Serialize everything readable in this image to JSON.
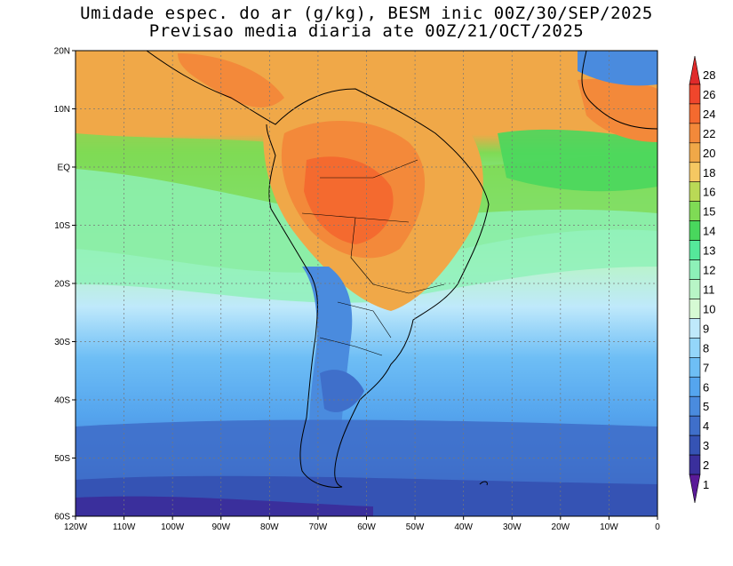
{
  "title": {
    "line1": "Umidade espec. do ar (g/kg), BESM inic 00Z/30/SEP/2025",
    "line2": "Previsao media diaria ate 00Z/21/OCT/2025"
  },
  "map": {
    "lat_labels": [
      "20N",
      "10N",
      "EQ",
      "10S",
      "20S",
      "30S",
      "40S",
      "50S",
      "60S"
    ],
    "lon_labels": [
      "120W",
      "110W",
      "100W",
      "90W",
      "80W",
      "70W",
      "60W",
      "50W",
      "40W",
      "30W",
      "20W",
      "10W",
      "0"
    ],
    "lat_range": [
      -60,
      20
    ],
    "lon_range": [
      -120,
      0
    ],
    "gridlines": "dotted",
    "region": "South America"
  },
  "colorbar": {
    "labels": [
      "28",
      "26",
      "24",
      "22",
      "20",
      "18",
      "16",
      "15",
      "14",
      "13",
      "12",
      "11",
      "10",
      "9",
      "8",
      "7",
      "6",
      "5",
      "4",
      "3",
      "2",
      "1"
    ],
    "colors": [
      "#e02a2a",
      "#f0462c",
      "#f46a2f",
      "#f3893a",
      "#f0a848",
      "#f5c862",
      "#bad956",
      "#7fdb55",
      "#49d75d",
      "#55e89a",
      "#8df1b8",
      "#b8f5c6",
      "#d6fad4",
      "#bfe9fb",
      "#94d6fa",
      "#6ebef5",
      "#55a5ee",
      "#4a8bde",
      "#3f6fca",
      "#3553b4",
      "#3a2f9c",
      "#5a1a98"
    ]
  }
}
